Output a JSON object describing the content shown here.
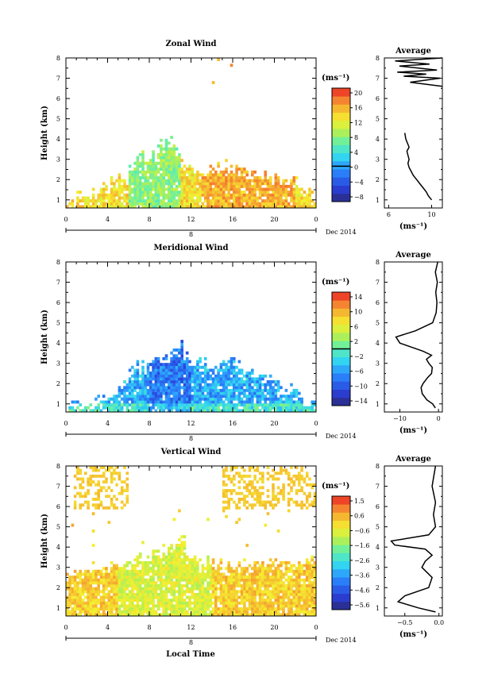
{
  "chart_data": [
    {
      "type": "heatmap",
      "title": "Zonal Wind",
      "ylabel": "Height (km)",
      "xticks": [
        "0",
        "4",
        "8",
        "12",
        "16",
        "20",
        "0"
      ],
      "yticks": [
        "1",
        "2",
        "3",
        "4",
        "5",
        "6",
        "7",
        "8"
      ],
      "xlim": [
        0,
        24
      ],
      "ylim": [
        0.6,
        8
      ],
      "day_label": "8",
      "date_label": "Dec 2014",
      "colorbar": {
        "unit": "(ms⁻¹)",
        "ticks": [
          "20",
          "16",
          "12",
          "8",
          "4",
          "0",
          "−4",
          "−8"
        ],
        "range": [
          -10,
          22
        ],
        "zero_line": 0
      },
      "field": {
        "echo_top_km": [
          [
            0,
            1.1
          ],
          [
            2,
            1.3
          ],
          [
            4,
            1.8
          ],
          [
            6,
            2.4
          ],
          [
            7,
            3.5
          ],
          [
            8,
            2.8
          ],
          [
            9,
            3.8
          ],
          [
            10,
            4.2
          ],
          [
            11,
            3.3
          ],
          [
            12,
            2.6
          ],
          [
            14,
            2.8
          ],
          [
            16,
            2.7
          ],
          [
            18,
            2.4
          ],
          [
            20,
            2.3
          ],
          [
            22,
            2.0
          ],
          [
            24,
            1.4
          ]
        ],
        "value_range": [
          4,
          20
        ]
      },
      "average_profile": {
        "title": "Average",
        "xticks": [
          "6",
          "10"
        ],
        "xlim": [
          5.6,
          11
        ],
        "xlabel": "(ms⁻¹)",
        "x": [
          10.0,
          9.7,
          9.5,
          9.2,
          8.9,
          8.6,
          8.3,
          8.1,
          7.9,
          7.8,
          7.9,
          7.8,
          7.7,
          7.9,
          7.6,
          7.5
        ],
        "y": [
          1.0,
          1.2,
          1.4,
          1.6,
          1.8,
          2.0,
          2.2,
          2.4,
          2.6,
          2.8,
          3.0,
          3.2,
          3.4,
          3.6,
          4.0,
          4.3
        ],
        "upper_x": [
          11,
          8.0,
          10.8,
          7.4,
          9.5,
          6.8,
          10.5,
          7.0,
          9.8,
          6.6,
          11
        ],
        "upper_y": [
          6.6,
          6.8,
          7.0,
          7.1,
          7.2,
          7.3,
          7.4,
          7.6,
          7.7,
          7.85,
          8.0
        ]
      }
    },
    {
      "type": "heatmap",
      "title": "Meridional Wind",
      "ylabel": "Height (km)",
      "xticks": [
        "0",
        "4",
        "8",
        "12",
        "16",
        "20",
        "0"
      ],
      "yticks": [
        "1",
        "2",
        "3",
        "4",
        "5",
        "6",
        "7",
        "8"
      ],
      "xlim": [
        0,
        24
      ],
      "ylim": [
        0.6,
        8
      ],
      "day_label": "8",
      "date_label": "Dec 2014",
      "colorbar": {
        "unit": "(ms⁻¹)",
        "ticks": [
          "14",
          "10",
          "6",
          "2",
          "−2",
          "−6",
          "−10",
          "−14"
        ],
        "range": [
          -16,
          16
        ],
        "zero_line": 0
      },
      "field": {
        "echo_top_km": [
          [
            0,
            0.9
          ],
          [
            3,
            1.2
          ],
          [
            4,
            1.4
          ],
          [
            5,
            1.6
          ],
          [
            6,
            2.5
          ],
          [
            7,
            3.0
          ],
          [
            8,
            3.2
          ],
          [
            10,
            3.6
          ],
          [
            11,
            4.1
          ],
          [
            12,
            3.2
          ],
          [
            14,
            3.0
          ],
          [
            16,
            3.1
          ],
          [
            18,
            2.6
          ],
          [
            20,
            2.2
          ],
          [
            22,
            1.8
          ],
          [
            24,
            1.0
          ]
        ],
        "value_range": [
          -14,
          0
        ]
      },
      "average_profile": {
        "title": "Average",
        "xticks": [
          "−10",
          "0"
        ],
        "xlim": [
          -14,
          1
        ],
        "xlabel": "(ms⁻¹)",
        "x": [
          -0.8,
          -1.5,
          -3.0,
          -4.2,
          -4.5,
          -4.0,
          -2.8,
          -1.8,
          -1.6,
          -2.5,
          -3.1,
          -1.8,
          -4.0,
          -7.0,
          -10.0,
          -11.0,
          -6.0,
          -1.5,
          -0.6,
          -0.4,
          -0.7,
          -0.3,
          -0.8,
          -0.2
        ],
        "y": [
          0.8,
          1.0,
          1.2,
          1.5,
          1.8,
          2.0,
          2.3,
          2.5,
          2.8,
          3.0,
          3.2,
          3.4,
          3.6,
          3.8,
          4.0,
          4.3,
          4.6,
          5.0,
          5.5,
          6.0,
          6.5,
          7.0,
          7.5,
          8.0
        ]
      }
    },
    {
      "type": "heatmap",
      "title": "Vertical Wind",
      "xlabel": "Local Time",
      "ylabel": "Height (km)",
      "xticks": [
        "0",
        "4",
        "8",
        "12",
        "16",
        "20",
        "0"
      ],
      "yticks": [
        "1",
        "2",
        "3",
        "4",
        "5",
        "6",
        "7",
        "8"
      ],
      "xlim": [
        0,
        24
      ],
      "ylim": [
        0.6,
        8
      ],
      "day_label": "8",
      "date_label": "Dec 2014",
      "colorbar": {
        "unit": "(ms⁻¹)",
        "ticks": [
          "1.5",
          "0.6",
          "−0.6",
          "−1.6",
          "−2.6",
          "−3.6",
          "−4.6",
          "−5.6"
        ],
        "range": [
          -6.2,
          2.0
        ]
      },
      "field": {
        "echo_top_km": [
          [
            0,
            2.7
          ],
          [
            2,
            3.0
          ],
          [
            4,
            3.2
          ],
          [
            6,
            3.4
          ],
          [
            8,
            3.7
          ],
          [
            10,
            4.0
          ],
          [
            11,
            4.4
          ],
          [
            12,
            3.6
          ],
          [
            14,
            3.5
          ],
          [
            16,
            3.0
          ],
          [
            18,
            3.3
          ],
          [
            20,
            3.6
          ],
          [
            22,
            3.4
          ],
          [
            24,
            3.6
          ]
        ],
        "value_range": [
          -1.6,
          0.8
        ]
      },
      "average_profile": {
        "title": "Average",
        "xticks": [
          "−0.5",
          "0.0"
        ],
        "xlim": [
          -0.8,
          0.05
        ],
        "xlabel": "(ms⁻¹)",
        "x": [
          -0.05,
          -0.3,
          -0.6,
          -0.5,
          -0.15,
          -0.1,
          -0.25,
          -0.2,
          -0.1,
          -0.2,
          -0.65,
          -0.7,
          -0.15,
          -0.05,
          -0.08,
          -0.05,
          -0.1,
          -0.05
        ],
        "y": [
          0.8,
          1.0,
          1.3,
          1.6,
          2.0,
          2.5,
          3.0,
          3.3,
          3.6,
          3.9,
          4.1,
          4.3,
          4.6,
          5.0,
          5.6,
          6.2,
          7.0,
          8.0
        ]
      }
    }
  ]
}
